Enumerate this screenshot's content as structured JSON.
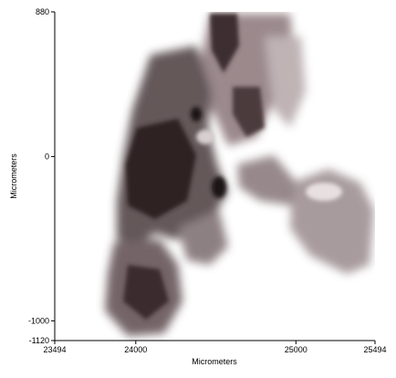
{
  "chart_data": {
    "type": "image",
    "xlabel": "Micrometers",
    "ylabel": "Micrometers",
    "xlim": [
      23494,
      25494
    ],
    "xticks": [
      23494,
      24000,
      25000,
      25494
    ],
    "ylim": [
      -1120,
      880
    ],
    "yticks": [
      880,
      0,
      -1000,
      -1120
    ]
  }
}
